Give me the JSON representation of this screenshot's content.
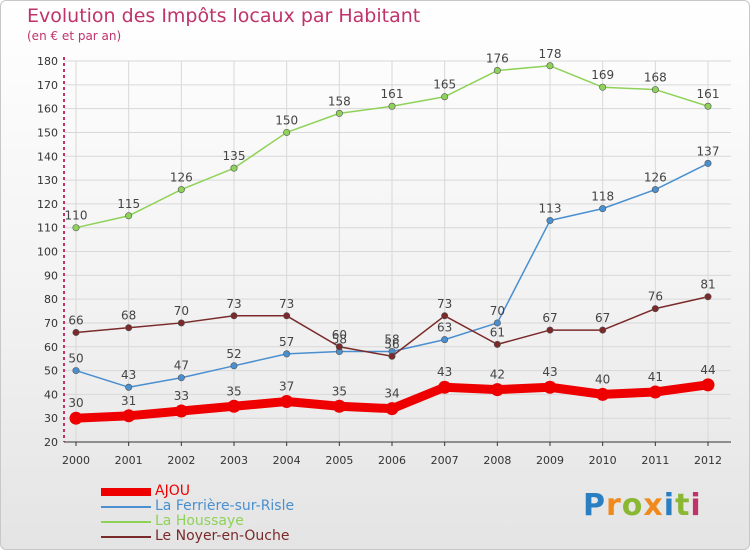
{
  "title": "Evolution des Impôts locaux par Habitant",
  "subtitle": "(en € et par an)",
  "logo": {
    "text": "Proxiti",
    "letter_colors": [
      "#2a7fc2",
      "#f08a1c",
      "#8ab832",
      "#f08a1c",
      "#2a7fc2",
      "#8ab832",
      "#c0336a"
    ]
  },
  "colors": {
    "title": "#c0336a",
    "axis": "#c0336a",
    "grid": "#d8d8d8"
  },
  "chart_data": {
    "type": "line",
    "title": "Evolution des Impôts locaux par Habitant",
    "subtitle": "(en € et par an)",
    "categories": [
      "2000",
      "2001",
      "2002",
      "2003",
      "2004",
      "2005",
      "2006",
      "2007",
      "2008",
      "2009",
      "2010",
      "2011",
      "2012"
    ],
    "ylim": [
      20,
      180
    ],
    "yticks": [
      20,
      30,
      40,
      50,
      60,
      70,
      80,
      90,
      100,
      110,
      120,
      130,
      140,
      150,
      160,
      170,
      180
    ],
    "grid": true,
    "legend_position": "bottom-left",
    "series": [
      {
        "name": "La Houssaye",
        "color": "#8fd25a",
        "values": [
          110,
          115,
          126,
          135,
          150,
          158,
          161,
          165,
          176,
          178,
          169,
          168,
          161
        ]
      },
      {
        "name": "La Ferrière-sur-Risle",
        "color": "#4a8fcf",
        "values": [
          50,
          43,
          47,
          52,
          57,
          58,
          58,
          63,
          70,
          113,
          118,
          126,
          137
        ]
      },
      {
        "name": "Le Noyer-en-Ouche",
        "color": "#7a2a2a",
        "values": [
          66,
          68,
          70,
          73,
          73,
          60,
          56,
          73,
          61,
          67,
          67,
          76,
          81
        ]
      },
      {
        "name": "AJOU",
        "color": "#ee0000",
        "values": [
          30,
          31,
          33,
          35,
          37,
          35,
          34,
          43,
          42,
          43,
          40,
          41,
          44
        ]
      }
    ]
  },
  "legend": [
    {
      "label": "AJOU",
      "color": "#ee0000",
      "thick": true
    },
    {
      "label": "La Ferrière-sur-Risle",
      "color": "#4a8fcf",
      "thick": false
    },
    {
      "label": "La Houssaye",
      "color": "#8fd25a",
      "thick": false
    },
    {
      "label": "Le Noyer-en-Ouche",
      "color": "#7a2a2a",
      "thick": false
    }
  ]
}
